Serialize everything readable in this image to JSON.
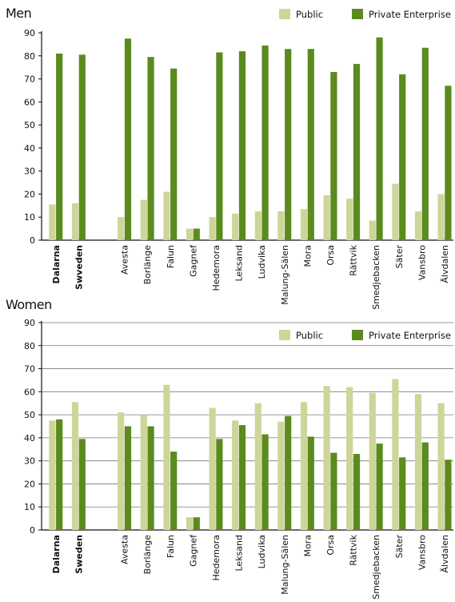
{
  "colors": {
    "public": "#cdd699",
    "private": "#5b8a1e",
    "grid": "#7a7a7a",
    "text": "#111111"
  },
  "chart_data": [
    {
      "type": "bar",
      "title": "Men",
      "ylim": [
        0,
        90
      ],
      "yticks": [
        0,
        10,
        20,
        30,
        40,
        50,
        60,
        70,
        80,
        90
      ],
      "grid": false,
      "legend_position": "top-right",
      "categories": [
        "Dalarna",
        "Swveden",
        "Avesta",
        "Borlänge",
        "Falun",
        "Gagnef",
        "Hedemora",
        "Leksand",
        "Ludvika",
        "Malung-Sälen",
        "Mora",
        "Orsa",
        "Rättvik",
        "Smedjebacken",
        "Säter",
        "Vansbro",
        "Älvdalen"
      ],
      "bold_categories": [
        "Dalarna",
        "Swveden"
      ],
      "series": [
        {
          "name": "Public",
          "values": [
            15.5,
            16,
            10,
            17.5,
            21,
            5,
            10,
            11.5,
            12.5,
            12.5,
            13.5,
            19.5,
            18,
            8.5,
            24.5,
            12.5,
            20
          ]
        },
        {
          "name": "Private Enterprise",
          "values": [
            81,
            80.5,
            87.5,
            79.5,
            74.5,
            5,
            81.5,
            82,
            84.5,
            83,
            83,
            73,
            76.5,
            88,
            72,
            83.5,
            67
          ]
        }
      ]
    },
    {
      "type": "bar",
      "title": "Women",
      "ylim": [
        0,
        90
      ],
      "yticks": [
        0,
        10,
        20,
        30,
        40,
        50,
        60,
        70,
        80,
        90
      ],
      "grid": true,
      "legend_position": "top-right",
      "categories": [
        "Dalarna",
        "Sweden",
        "Avesta",
        "Borlänge",
        "Falun",
        "Gagnef",
        "Hedemora",
        "Leksand",
        "Ludvika",
        "Malung-Sälen",
        "Mora",
        "Orsa",
        "Rättvik",
        "Smedjebacken",
        "Säter",
        "Vansbro",
        "Älvdalen"
      ],
      "bold_categories": [
        "Dalarna",
        "Sweden"
      ],
      "series": [
        {
          "name": "Public",
          "values": [
            47.5,
            55.5,
            51,
            50,
            63,
            5.5,
            53,
            47.5,
            55,
            47,
            55.5,
            62.5,
            62,
            59.5,
            65.5,
            59,
            55
          ]
        },
        {
          "name": "Private Enterprise",
          "values": [
            48,
            39.5,
            45,
            45,
            34,
            5.5,
            39.5,
            45.5,
            41.5,
            49.5,
            40.5,
            33.5,
            33,
            37.5,
            31.5,
            38,
            30.5
          ]
        }
      ]
    }
  ]
}
